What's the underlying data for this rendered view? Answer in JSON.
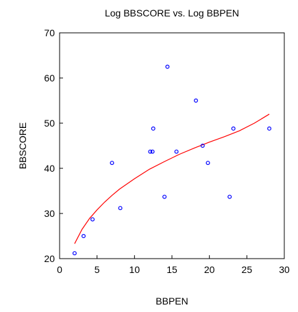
{
  "chart_data": {
    "type": "scatter",
    "title": "Log BBSCORE vs. Log BBPEN",
    "xlabel": "BBPEN",
    "ylabel": "BBSCORE",
    "xlim": [
      0,
      30
    ],
    "ylim": [
      20,
      70
    ],
    "xticks": [
      0,
      5,
      10,
      15,
      20,
      25,
      30
    ],
    "yticks": [
      20,
      30,
      40,
      50,
      60,
      70
    ],
    "grid": false,
    "legend": "none",
    "series": [
      {
        "kind": "points",
        "marker": "open-circle",
        "color": "#0000ff",
        "x": [
          2.0,
          3.2,
          4.4,
          7.0,
          8.1,
          12.1,
          12.4,
          12.5,
          14.0,
          14.4,
          15.6,
          18.2,
          19.1,
          19.8,
          22.7,
          23.2,
          28.0
        ],
        "y": [
          21.2,
          25.0,
          28.7,
          41.2,
          31.2,
          43.7,
          43.7,
          48.8,
          33.7,
          62.5,
          43.7,
          55.0,
          45.0,
          41.2,
          33.7,
          48.8,
          48.8
        ]
      },
      {
        "kind": "line",
        "color": "#ff0000",
        "x": [
          2,
          3,
          4,
          5,
          6,
          7,
          8,
          10,
          12,
          14,
          16,
          18,
          20,
          22,
          24,
          26,
          28
        ],
        "y": [
          23.3,
          26.5,
          28.9,
          30.8,
          32.5,
          34.0,
          35.4,
          37.7,
          39.8,
          41.5,
          43.1,
          44.5,
          45.8,
          47.0,
          48.3,
          50.0,
          52.0
        ]
      }
    ]
  }
}
